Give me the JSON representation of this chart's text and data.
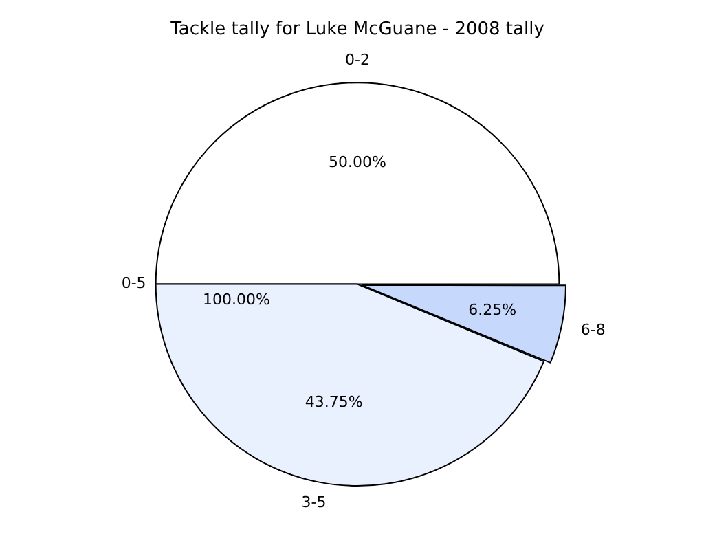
{
  "chart_data": {
    "type": "pie",
    "title": "Tackle tally for Luke McGuane - 2008 tally",
    "categories": [
      "0-2",
      "6-8",
      "3-5",
      "0-5"
    ],
    "values": [
      50,
      6.25,
      43.75,
      0
    ],
    "colors": [
      "#ffffff",
      "#c6d9fd",
      "#eaf1fe",
      "#ffffff"
    ],
    "value_labels": [
      "50.00%",
      "6.25%",
      "43.75%",
      null
    ],
    "annotations": [
      "100.00%"
    ],
    "legend": false
  }
}
